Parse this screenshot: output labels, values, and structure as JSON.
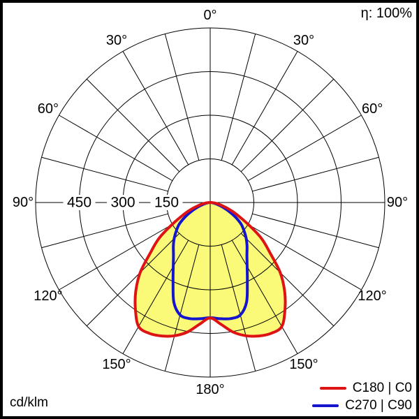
{
  "header": {
    "efficiency": "η: 100%"
  },
  "footer": {
    "unit": "cd/klm"
  },
  "legend": {
    "items": [
      {
        "label": "C180 | C0",
        "color": "#de1414"
      },
      {
        "label": "C270 | C90",
        "color": "#1515ce"
      }
    ]
  },
  "chart_data": {
    "type": "polar-intensity-distribution",
    "unit": "cd/klm",
    "efficiency_percent": 100,
    "angle_label_suffix": "°",
    "angle_labels_deg": [
      0,
      30,
      60,
      90,
      120,
      150,
      180
    ],
    "grid_step_deg": 15,
    "radial_rings": [
      150,
      300,
      450,
      600
    ],
    "radial_tick_labels": [
      450,
      300,
      150
    ],
    "r_max": 600,
    "grid_color": "#000000",
    "series": [
      {
        "name": "C180 | C0",
        "color": "#de1414",
        "fill": "#fafa78",
        "symmetric": true,
        "gamma_deg": [
          0,
          5,
          10,
          15,
          20,
          25,
          30,
          35,
          40,
          45,
          50,
          55,
          60,
          65,
          70,
          75,
          80,
          85,
          90
        ],
        "values": [
          397,
          420,
          452,
          474,
          488,
          496,
          492,
          448,
          398,
          340,
          268,
          215,
          152,
          105,
          72,
          45,
          27,
          13,
          4
        ]
      },
      {
        "name": "C270 | C90",
        "color": "#1515ce",
        "fill": "none",
        "symmetric": true,
        "gamma_deg": [
          0,
          5,
          10,
          15,
          20,
          25,
          30,
          35,
          40,
          45,
          50,
          55,
          60,
          65,
          70,
          75,
          80,
          85,
          90
        ],
        "values": [
          396,
          401,
          405,
          400,
          365,
          302,
          254,
          220,
          197,
          175,
          152,
          130,
          100,
          70,
          45,
          25,
          13,
          6,
          2
        ]
      }
    ]
  }
}
